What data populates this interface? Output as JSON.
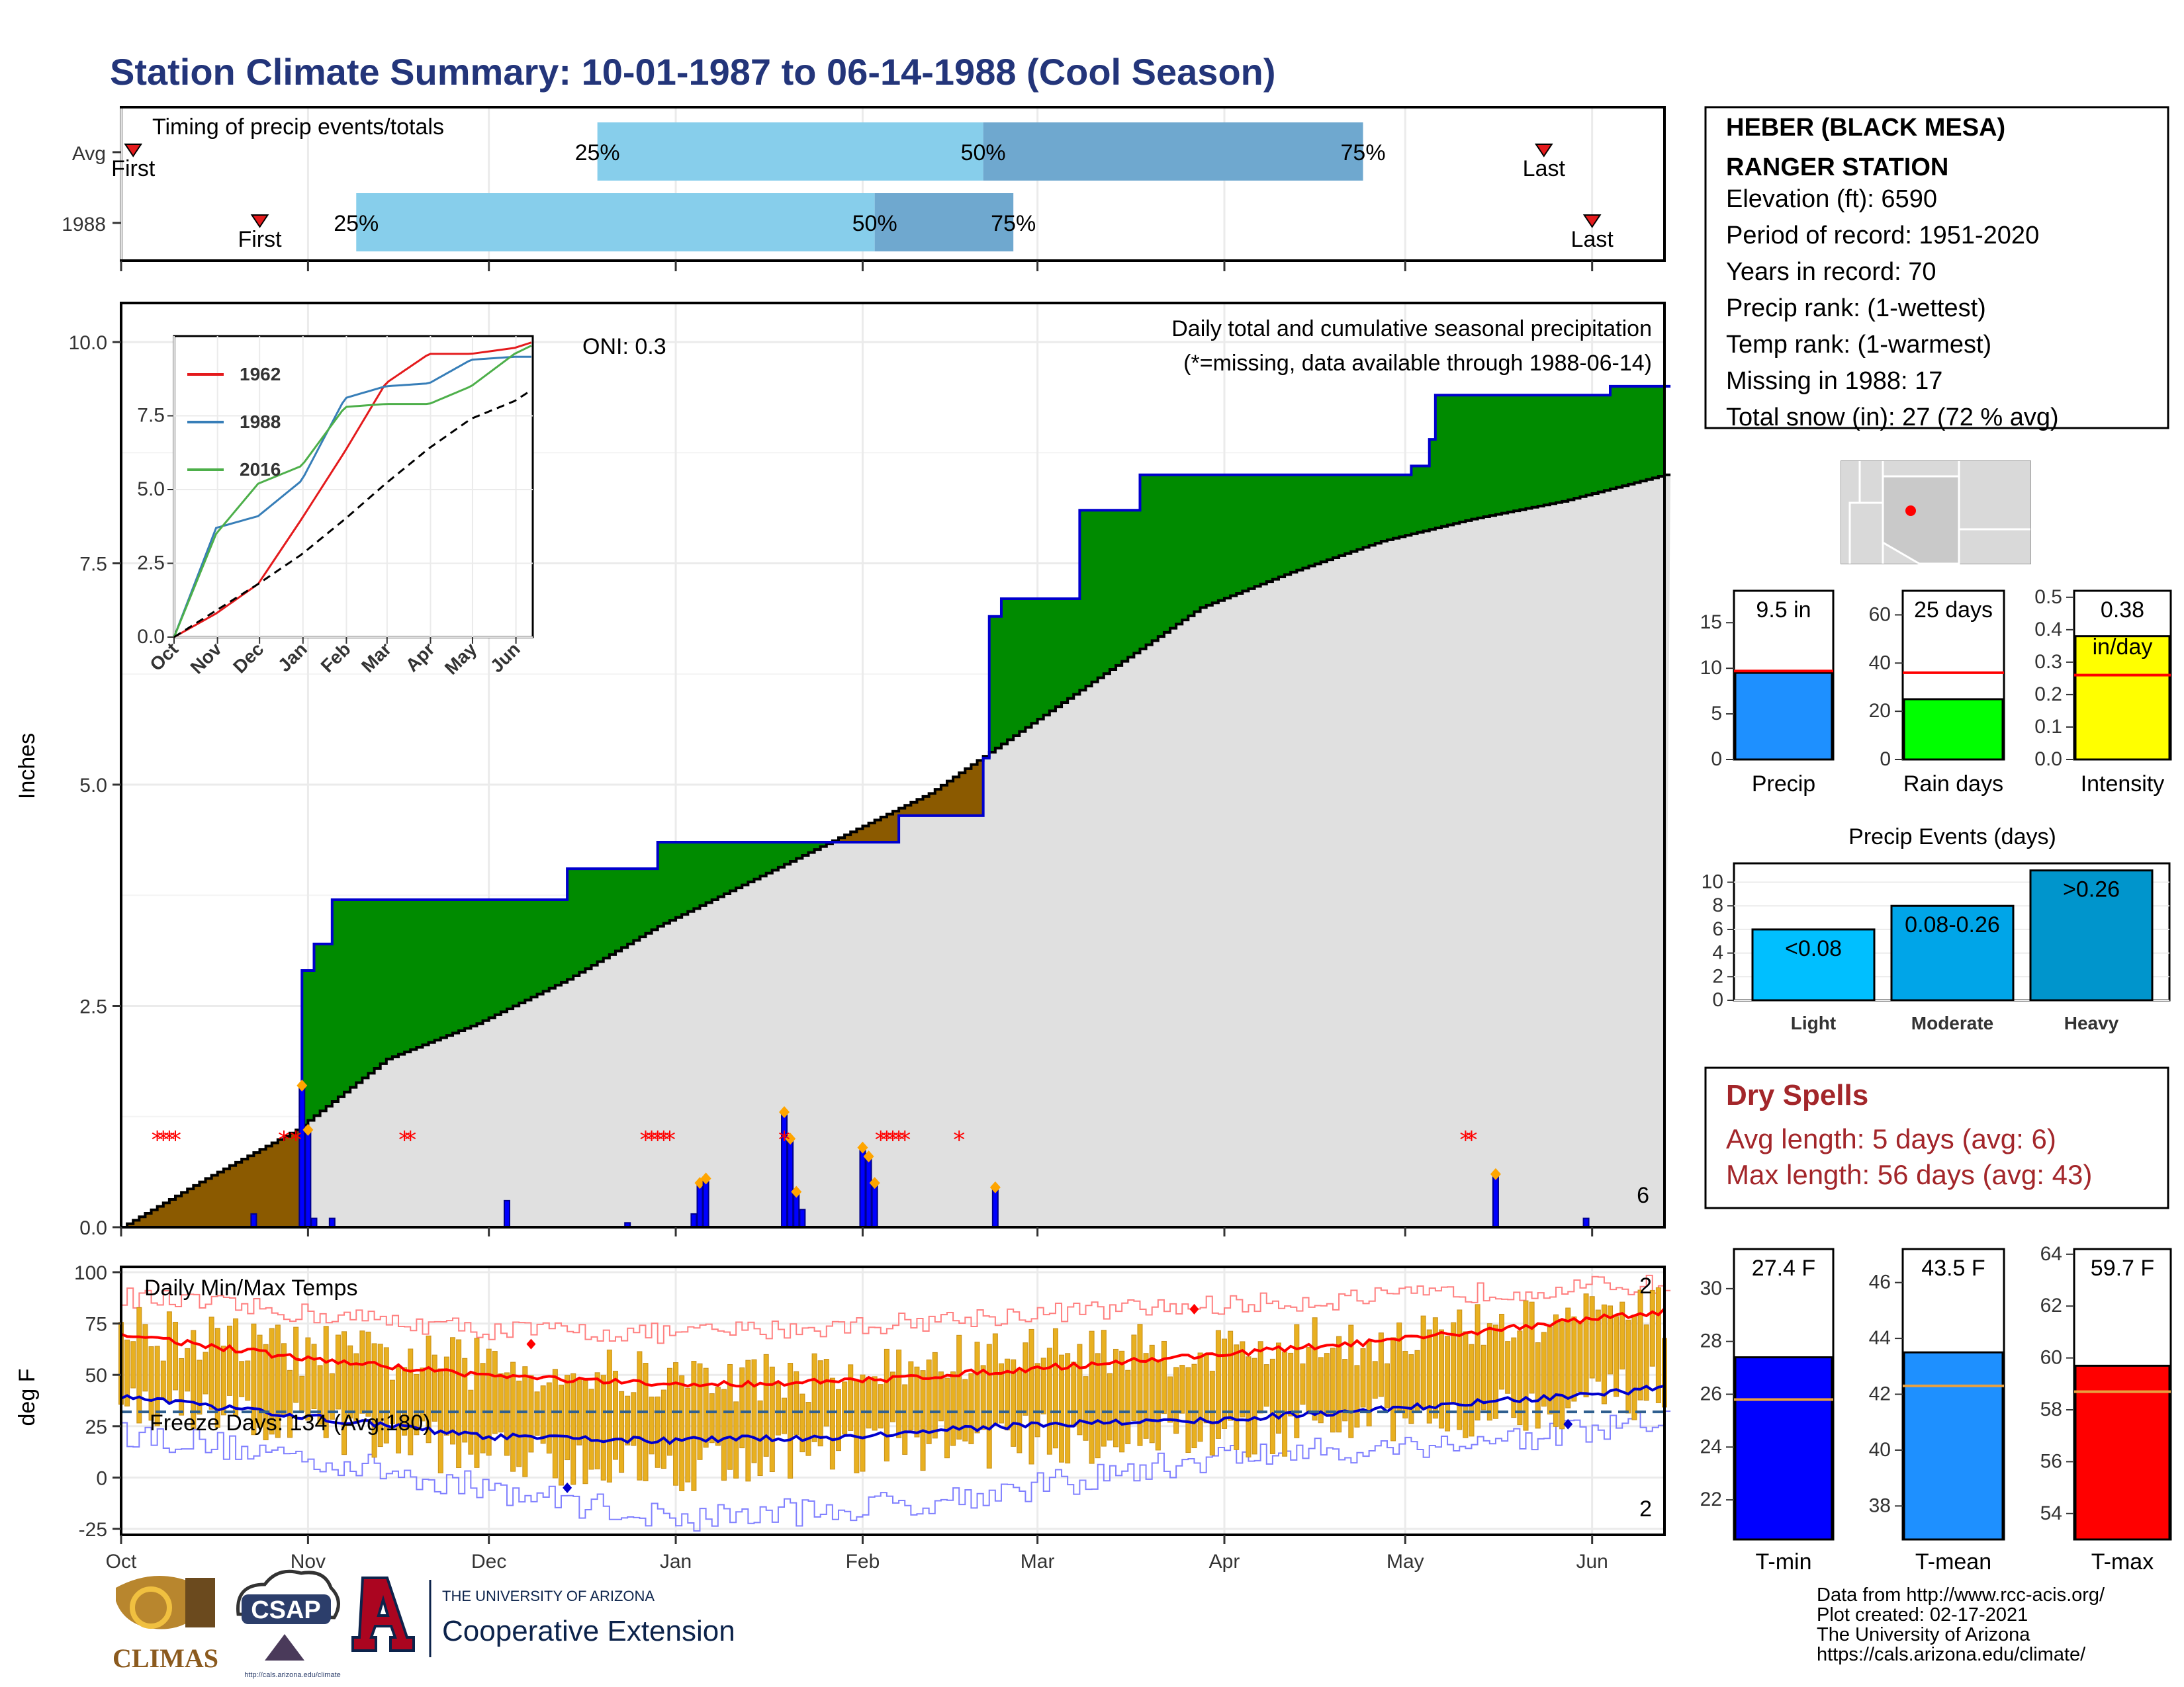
{
  "title": "Station Climate Summary: 10-01-1987 to 06-14-1988 (Cool Season)",
  "station": {
    "name_line1": "HEBER (BLACK MESA)",
    "name_line2": "RANGER STATION",
    "elevation": "Elevation (ft): 6590",
    "period": "Period of record: 1951-2020",
    "years": "Years in record: 70",
    "precip_rank": "Precip rank:  (1-wettest)",
    "temp_rank": "Temp rank:  (1-warmest)",
    "missing": "Missing in 1988: 17",
    "snow": "Total snow (in): 27 (72 % avg)"
  },
  "months": [
    "Oct",
    "Nov",
    "Dec",
    "Jan",
    "Feb",
    "Mar",
    "Apr",
    "May",
    "Jun"
  ],
  "timing": {
    "label": "Timing of precip events/totals",
    "rows": [
      "Avg",
      "1988"
    ],
    "first_label": "First",
    "last_label": "Last",
    "avg": {
      "first": 3,
      "p25": 80,
      "p50": 144,
      "p75": 207,
      "last": 237
    },
    "year": {
      "first": 24,
      "p25": 40,
      "p50": 126,
      "p75": 149,
      "last": 245
    },
    "p25_label": "25%",
    "p50_label": "50%",
    "p75_label": "75%"
  },
  "precip_panel": {
    "ylabel": "Inches",
    "oni": "ONI: 0.3",
    "title": "Daily total and cumulative seasonal precipitation",
    "subtitle": "(*=missing, data available through 1988-06-14)",
    "corner_count": "6",
    "yticks": [
      "0.0",
      "2.5",
      "5.0",
      "7.5",
      "10.0"
    ]
  },
  "inset": {
    "yticks": [
      "0.0",
      "2.5",
      "5.0",
      "7.5"
    ],
    "legend": [
      "1962",
      "1988",
      "2016"
    ],
    "colors": {
      "1962": "#e41a1c",
      "1988": "#377eb8",
      "2016": "#4daf4a"
    }
  },
  "temp_panel": {
    "ylabel": "deg F",
    "title": "Daily Min/Max Temps",
    "freeze": "Freeze Days: 134 (Avg:180)",
    "count_max": "2",
    "count_min": "2",
    "yticks": [
      "-25",
      "0",
      "25",
      "50",
      "75",
      "100"
    ]
  },
  "bars": {
    "precip": {
      "label": "Precip",
      "value_label": "9.5 in",
      "ticks": [
        "0",
        "5",
        "10",
        "15"
      ],
      "value": 9.5,
      "avg": 9.7,
      "max": 18.5,
      "color": "#1e90ff"
    },
    "raindays": {
      "label": "Rain days",
      "value_label": "25 days",
      "ticks": [
        "0",
        "20",
        "40",
        "60"
      ],
      "value": 25,
      "avg": 36,
      "max": 70,
      "color": "#00ff00"
    },
    "intensity": {
      "label": "Intensity",
      "value_label": "0.38",
      "sub_label": "in/day",
      "ticks": [
        "0.0",
        "0.1",
        "0.2",
        "0.3",
        "0.4",
        "0.5"
      ],
      "value": 0.38,
      "avg": 0.26,
      "max": 0.52,
      "color": "#ffff00"
    },
    "tmin": {
      "label": "T-min",
      "value_label": "27.4 F",
      "ticks": [
        "22",
        "24",
        "26",
        "28",
        "30"
      ],
      "value": 27.4,
      "avg": 25.8,
      "min": 20.5,
      "max": 31.5,
      "color": "#0000ff"
    },
    "tmean": {
      "label": "T-mean",
      "value_label": "43.5 F",
      "ticks": [
        "38",
        "40",
        "42",
        "44",
        "46"
      ],
      "value": 43.5,
      "avg": 42.3,
      "min": 36.8,
      "max": 47.2,
      "color": "#1e90ff"
    },
    "tmax": {
      "label": "T-max",
      "value_label": "59.7 F",
      "ticks": [
        "54",
        "56",
        "58",
        "60",
        "62",
        "64"
      ],
      "value": 59.7,
      "avg": 58.7,
      "min": 53.0,
      "max": 64.2,
      "color": "#ff0000"
    }
  },
  "events": {
    "title": "Precip Events (days)",
    "ticks": [
      "0",
      "2",
      "4",
      "6",
      "8",
      "10"
    ],
    "categories": [
      "Light",
      "Moderate",
      "Heavy"
    ],
    "labels": [
      "<0.08",
      "0.08-0.26",
      ">0.26"
    ],
    "values": [
      6,
      8,
      11
    ],
    "colors": [
      "#00bfff",
      "#00a5e8",
      "#0095cc"
    ]
  },
  "dry_spells": {
    "title": "Dry Spells",
    "avg": "Avg length: 5 days (avg: 6)",
    "max": "Max length: 56 days (avg: 43)"
  },
  "logos": {
    "climas": "CLIMAS",
    "csap": "CSAP",
    "csap_url": "http://cals.arizona.edu/climate",
    "ua_small": "THE UNIVERSITY OF ARIZONA",
    "coop": "Cooperative Extension"
  },
  "footer": {
    "line1": "Data from http://www.rcc-acis.org/",
    "line2": "Plot created: 02-17-2021",
    "line3": "The University of Arizona",
    "line4": "https://cals.arizona.edu/climate/"
  },
  "chart_data": [
    {
      "type": "area",
      "title": "Daily total and cumulative seasonal precipitation",
      "ylabel": "Inches",
      "ylim": [
        0,
        10.5
      ],
      "x_unit": "day of season (starting 10-01-1987)",
      "xlim": [
        1,
        257
      ],
      "series": [
        {
          "name": "1988",
          "x": [
            1,
            30,
            31,
            33,
            36,
            55,
            75,
            90,
            105,
            130,
            144,
            145,
            147,
            160,
            170,
            215,
            218,
            219,
            248,
            257
          ],
          "values": [
            0.0,
            0.0,
            2.9,
            3.2,
            3.7,
            3.7,
            4.05,
            4.35,
            4.35,
            4.65,
            5.3,
            6.9,
            7.1,
            8.1,
            8.5,
            8.6,
            8.9,
            9.4,
            9.5,
            9.5
          ]
        },
        {
          "x": [
            1,
            15,
            30,
            45,
            60,
            75,
            90,
            105,
            120,
            135,
            150,
            165,
            180,
            195,
            210,
            225,
            240,
            257
          ],
          "values": [
            0.0,
            0.55,
            1.1,
            1.9,
            2.3,
            2.8,
            3.4,
            3.9,
            4.4,
            4.9,
            5.6,
            6.3,
            7.0,
            7.4,
            7.75,
            8.0,
            8.2,
            8.5
          ]
        }
      ],
      "daily_precip": {
        "x": [
          23,
          31,
          32,
          33,
          36,
          65,
          85,
          96,
          97,
          98,
          111,
          112,
          113,
          114,
          124,
          125,
          126,
          146,
          229,
          244
        ],
        "values": [
          0.15,
          1.6,
          1.1,
          0.1,
          0.1,
          0.3,
          0.05,
          0.15,
          0.5,
          0.55,
          1.3,
          1.0,
          0.4,
          0.2,
          0.9,
          0.8,
          0.5,
          0.45,
          0.6,
          0.1
        ]
      },
      "missing_days": [
        7,
        8,
        9,
        10,
        28,
        30,
        48,
        49,
        88,
        89,
        90,
        91,
        92,
        111,
        127,
        128,
        129,
        130,
        131,
        140,
        224,
        225
      ]
    },
    {
      "type": "line",
      "title": "Cumulative precipitation comparison",
      "ylim": [
        0,
        10
      ],
      "x": [
        1,
        31,
        61,
        92,
        123,
        152,
        183,
        213,
        244,
        257
      ],
      "series": [
        {
          "name": "1962",
          "values": [
            0.0,
            0.8,
            1.8,
            4.0,
            6.3,
            8.6,
            9.6,
            9.6,
            9.8,
            10.0
          ]
        },
        {
          "name": "1988",
          "values": [
            0.0,
            3.7,
            4.1,
            5.3,
            8.1,
            8.5,
            8.6,
            9.4,
            9.5,
            9.5
          ]
        },
        {
          "name": "2016",
          "values": [
            0.0,
            3.5,
            5.2,
            5.8,
            7.8,
            7.9,
            7.9,
            8.5,
            9.6,
            9.9
          ]
        },
        {
          "values": [
            0.0,
            0.9,
            1.8,
            2.8,
            4.0,
            5.2,
            6.4,
            7.4,
            8.0,
            8.4
          ]
        }
      ]
    },
    {
      "type": "bar",
      "title": "Daily Min/Max Temps",
      "ylabel": "deg F",
      "ylim": [
        -30,
        102
      ],
      "x_unit": "day of season (starting 10-01-1987)",
      "xlim": [
        1,
        257
      ],
      "freeze_threshold": 32,
      "tmax_anchor": {
        "x": [
          1,
          31,
          61,
          92,
          123,
          152,
          183,
          213,
          244,
          257
        ],
        "values": [
          72,
          62,
          55,
          48,
          50,
          62,
          62,
          68,
          78,
          80
        ]
      },
      "tmin_anchor": {
        "x": [
          1,
          31,
          61,
          92,
          123,
          152,
          183,
          213,
          244,
          257
        ],
        "values": [
          35,
          25,
          12,
          5,
          15,
          18,
          20,
          28,
          38,
          42
        ]
      },
      "avg_max": {
        "x": [
          1,
          31,
          61,
          92,
          123,
          152,
          183,
          213,
          244,
          257
        ],
        "values": [
          70,
          58,
          50,
          45,
          47,
          53,
          60,
          67,
          77,
          81
        ]
      },
      "avg_min": {
        "x": [
          1,
          31,
          61,
          92,
          123,
          152,
          183,
          213,
          244,
          257
        ],
        "values": [
          39,
          30,
          20,
          18,
          20,
          26,
          28,
          34,
          40,
          44
        ]
      },
      "record_max": {
        "x": [
          1,
          31,
          61,
          92,
          123,
          152,
          183,
          213,
          244,
          257
        ],
        "values": [
          88,
          80,
          72,
          70,
          74,
          80,
          84,
          88,
          93,
          94
        ]
      },
      "record_min": {
        "x": [
          1,
          31,
          61,
          92,
          123,
          152,
          183,
          213,
          244,
          257
        ],
        "values": [
          22,
          10,
          -5,
          -20,
          -15,
          -5,
          10,
          15,
          22,
          28
        ]
      }
    },
    {
      "type": "bar",
      "title": "Precip Events (days)",
      "categories": [
        "Light",
        "Moderate",
        "Heavy"
      ],
      "values": [
        6,
        8,
        11
      ]
    }
  ]
}
